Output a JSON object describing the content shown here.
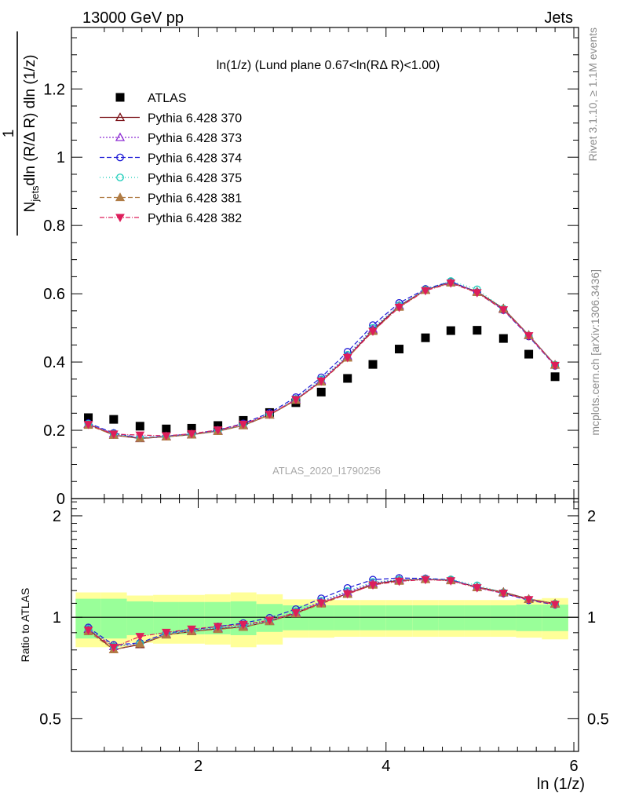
{
  "header": {
    "left": "13000 GeV pp",
    "right": "Jets"
  },
  "side_labels": {
    "rivet": "Rivet 3.1.10, ≥ 1.1M events",
    "mcplots": "mcplots.cern.ch [arXiv:1306.3436]"
  },
  "chart_data": {
    "type": "scatter",
    "title": "ln(1/z) (Lund plane 0.67<ln(RΔ R)<1.00)",
    "xlabel": "ln (1/z)",
    "xlim": [
      0.65,
      6.05
    ],
    "watermark": "ATLAS_2020_I1790256",
    "x": [
      0.83,
      1.1,
      1.38,
      1.66,
      1.93,
      2.21,
      2.48,
      2.76,
      3.04,
      3.31,
      3.59,
      3.86,
      4.14,
      4.42,
      4.69,
      4.97,
      5.25,
      5.52,
      5.8
    ],
    "main": {
      "ylabel": "1/N_jets d^2 N_emissions / dln (R/Δ R) dln (1/z)",
      "ylim": [
        0,
        1.38
      ],
      "yticks": [
        0.2,
        0.4,
        0.6,
        0.8,
        1,
        1.2
      ],
      "ytick_labels": [
        "0.2",
        "0.4",
        "0.6",
        "0.8",
        "1",
        "1.2"
      ],
      "bottom_tick_label": "0"
    },
    "ratio": {
      "ylabel": "Ratio to ATLAS",
      "ylim": [
        0.4,
        2.25
      ],
      "yticks": [
        0.5,
        1,
        2
      ],
      "ytick_labels": [
        "0.5",
        "1",
        "2"
      ]
    },
    "xticks": [
      2,
      4,
      6
    ],
    "xtick_labels": [
      "2",
      "4",
      "6"
    ],
    "legend_position": "top-left",
    "data": {
      "name": "ATLAS",
      "color": "#000000",
      "values": [
        0.237,
        0.232,
        0.212,
        0.204,
        0.206,
        0.214,
        0.229,
        0.252,
        0.281,
        0.312,
        0.352,
        0.393,
        0.438,
        0.471,
        0.492,
        0.493,
        0.469,
        0.423,
        0.357
      ],
      "band_green": [
        0.135,
        0.135,
        0.115,
        0.11,
        0.11,
        0.11,
        0.115,
        0.095,
        0.085,
        0.085,
        0.085,
        0.085,
        0.085,
        0.085,
        0.085,
        0.085,
        0.085,
        0.09,
        0.09
      ],
      "band_yellow": [
        0.185,
        0.185,
        0.16,
        0.165,
        0.165,
        0.17,
        0.185,
        0.17,
        0.13,
        0.13,
        0.125,
        0.125,
        0.125,
        0.125,
        0.125,
        0.125,
        0.125,
        0.13,
        0.14
      ]
    },
    "series": [
      {
        "name": "Pythia 6.428 370",
        "color": "#7b1016",
        "dash": "",
        "marker": "triangle-open",
        "values": [
          0.218,
          0.186,
          0.176,
          0.181,
          0.187,
          0.198,
          0.214,
          0.245,
          0.289,
          0.344,
          0.414,
          0.493,
          0.564,
          0.611,
          0.634,
          0.606,
          0.557,
          0.479,
          0.392
        ]
      },
      {
        "name": "Pythia 6.428 373",
        "color": "#8e2ed3",
        "dash": "2,2",
        "marker": "triangle-open",
        "values": [
          0.219,
          0.19,
          0.177,
          0.182,
          0.188,
          0.199,
          0.216,
          0.246,
          0.291,
          0.347,
          0.418,
          0.497,
          0.566,
          0.612,
          0.634,
          0.605,
          0.554,
          0.478,
          0.391
        ]
      },
      {
        "name": "Pythia 6.428 374",
        "color": "#1d1ad6",
        "dash": "6,3",
        "marker": "circle-open",
        "values": [
          0.221,
          0.192,
          0.178,
          0.183,
          0.189,
          0.201,
          0.22,
          0.251,
          0.297,
          0.355,
          0.43,
          0.508,
          0.573,
          0.614,
          0.636,
          0.604,
          0.552,
          0.475,
          0.389
        ]
      },
      {
        "name": "Pythia 6.428 375",
        "color": "#19ccb8",
        "dash": "1,3",
        "marker": "circle-open",
        "values": [
          0.219,
          0.19,
          0.177,
          0.182,
          0.188,
          0.199,
          0.216,
          0.247,
          0.292,
          0.349,
          0.421,
          0.5,
          0.566,
          0.612,
          0.637,
          0.613,
          0.556,
          0.478,
          0.392
        ]
      },
      {
        "name": "Pythia 6.428 381",
        "color": "#b07c45",
        "dash": "6,3",
        "marker": "triangle-filled",
        "values": [
          0.215,
          0.186,
          0.177,
          0.181,
          0.187,
          0.197,
          0.214,
          0.245,
          0.288,
          0.342,
          0.412,
          0.49,
          0.561,
          0.61,
          0.632,
          0.604,
          0.555,
          0.478,
          0.391
        ]
      },
      {
        "name": "Pythia 6.428 382",
        "color": "#dd1e5b",
        "dash": "6,2,1,2",
        "marker": "triangle-down-filled",
        "values": [
          0.217,
          0.189,
          0.186,
          0.184,
          0.19,
          0.201,
          0.218,
          0.247,
          0.29,
          0.344,
          0.413,
          0.49,
          0.56,
          0.609,
          0.631,
          0.603,
          0.553,
          0.477,
          0.39
        ]
      }
    ]
  }
}
